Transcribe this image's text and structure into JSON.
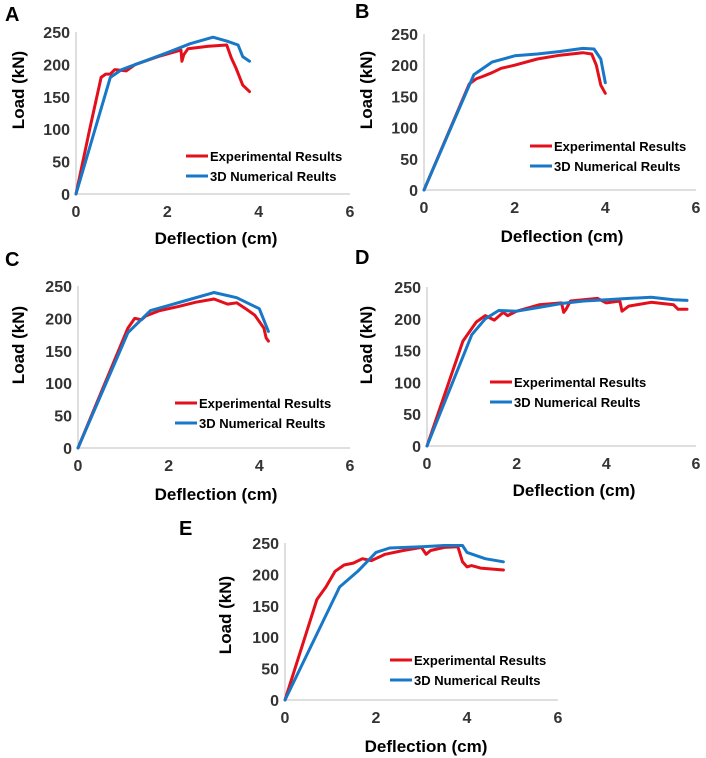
{
  "colors": {
    "experimental": "#e3101c",
    "numerical": "#1878c8",
    "axis": "#bfbfbf"
  },
  "chart_data": [
    {
      "panel": "A",
      "type": "line",
      "xlabel": "Deflection (cm)",
      "ylabel": "Load (kN)",
      "xlim": [
        0,
        6
      ],
      "ylim": [
        0,
        250
      ],
      "xticks": [
        "0",
        "2",
        "4",
        "6"
      ],
      "yticks": [
        "0",
        "50",
        "100",
        "150",
        "200",
        "250"
      ],
      "legend": "right",
      "series": [
        {
          "name": "Experimental Results",
          "color": "#e3101c",
          "x": [
            0,
            0.3,
            0.55,
            0.65,
            0.75,
            0.85,
            1.1,
            1.3,
            1.8,
            2.3,
            2.32,
            2.36,
            2.45,
            2.9,
            3.3,
            3.4,
            3.5,
            3.65,
            3.8
          ],
          "y": [
            0,
            100,
            180,
            185,
            185,
            192,
            190,
            200,
            212,
            222,
            205,
            215,
            224,
            228,
            230,
            210,
            195,
            168,
            158
          ]
        },
        {
          "name": "3D Numerical Reults",
          "color": "#1878c8",
          "x": [
            0,
            0.75,
            1.0,
            1.5,
            2.0,
            2.5,
            3.0,
            3.3,
            3.55,
            3.65,
            3.8
          ],
          "y": [
            0,
            180,
            192,
            205,
            218,
            232,
            242,
            236,
            230,
            212,
            205
          ]
        }
      ]
    },
    {
      "panel": "B",
      "type": "line",
      "xlabel": "Deflection (cm)",
      "ylabel": "Load (kN)",
      "xlim": [
        0,
        6
      ],
      "ylim": [
        0,
        250
      ],
      "xticks": [
        "0",
        "2",
        "4",
        "6"
      ],
      "yticks": [
        "0",
        "50",
        "100",
        "150",
        "200",
        "250"
      ],
      "legend": "right",
      "series": [
        {
          "name": "Experimental Results",
          "color": "#e3101c",
          "x": [
            0,
            1.0,
            1.15,
            1.3,
            1.5,
            1.7,
            2.0,
            2.5,
            3.0,
            3.5,
            3.7,
            3.8,
            3.9,
            4.0
          ],
          "y": [
            0,
            170,
            178,
            182,
            188,
            195,
            200,
            210,
            216,
            220,
            218,
            200,
            168,
            155
          ]
        },
        {
          "name": "3D Numerical Reults",
          "color": "#1878c8",
          "x": [
            0,
            1.1,
            1.5,
            2.0,
            2.5,
            3.0,
            3.5,
            3.75,
            3.9,
            4.0
          ],
          "y": [
            0,
            185,
            205,
            215,
            218,
            222,
            227,
            226,
            210,
            172
          ]
        }
      ]
    },
    {
      "panel": "C",
      "type": "line",
      "xlabel": "Deflection (cm)",
      "ylabel": "Load (kN)",
      "xlim": [
        0,
        6
      ],
      "ylim": [
        0,
        250
      ],
      "xticks": [
        "0",
        "2",
        "4",
        "6"
      ],
      "yticks": [
        "0",
        "50",
        "100",
        "150",
        "200",
        "250"
      ],
      "legend": "right",
      "series": [
        {
          "name": "Experimental Results",
          "color": "#e3101c",
          "x": [
            0,
            1.1,
            1.25,
            1.4,
            1.5,
            1.8,
            2.2,
            2.6,
            3.0,
            3.3,
            3.5,
            3.7,
            3.9,
            4.1,
            4.15,
            4.2
          ],
          "y": [
            0,
            185,
            200,
            198,
            204,
            212,
            218,
            225,
            230,
            222,
            224,
            215,
            205,
            185,
            170,
            165
          ]
        },
        {
          "name": "3D Numerical Reults",
          "color": "#1878c8",
          "x": [
            0,
            1.1,
            1.6,
            2.0,
            2.5,
            2.9,
            3.0,
            3.5,
            4.0,
            4.2
          ],
          "y": [
            0,
            178,
            212,
            220,
            230,
            238,
            240,
            232,
            215,
            180
          ]
        }
      ]
    },
    {
      "panel": "D",
      "type": "line",
      "xlabel": "Deflection (cm)",
      "ylabel": "Load (kN)",
      "xlim": [
        0,
        6
      ],
      "ylim": [
        0,
        250
      ],
      "xticks": [
        "0",
        "2",
        "4",
        "6"
      ],
      "yticks": [
        "0",
        "50",
        "100",
        "150",
        "200",
        "250"
      ],
      "legend": "right",
      "series": [
        {
          "name": "Experimental Results",
          "color": "#e3101c",
          "x": [
            0,
            0.8,
            1.1,
            1.3,
            1.5,
            1.7,
            1.8,
            2.0,
            2.5,
            3.0,
            3.05,
            3.1,
            3.2,
            3.8,
            4.0,
            4.3,
            4.35,
            4.5,
            5.0,
            5.5,
            5.6,
            5.8
          ],
          "y": [
            0,
            165,
            195,
            205,
            198,
            210,
            205,
            212,
            222,
            225,
            210,
            215,
            228,
            232,
            225,
            228,
            212,
            220,
            226,
            222,
            215,
            215
          ]
        },
        {
          "name": "3D Numerical Reults",
          "color": "#1878c8",
          "x": [
            0,
            1.0,
            1.3,
            1.6,
            2.0,
            2.5,
            3.0,
            3.5,
            4.0,
            4.5,
            5.0,
            5.5,
            5.8
          ],
          "y": [
            0,
            175,
            200,
            213,
            212,
            218,
            224,
            228,
            230,
            232,
            234,
            230,
            229
          ]
        }
      ]
    },
    {
      "panel": "E",
      "type": "line",
      "xlabel": "Deflection (cm)",
      "ylabel": "Load (kN)",
      "xlim": [
        0,
        6
      ],
      "ylim": [
        0,
        250
      ],
      "xticks": [
        "0",
        "2",
        "4",
        "6"
      ],
      "yticks": [
        "0",
        "50",
        "100",
        "150",
        "200",
        "250"
      ],
      "legend": "right",
      "series": [
        {
          "name": "Experimental Results",
          "color": "#e3101c",
          "x": [
            0,
            0.7,
            0.9,
            1.1,
            1.3,
            1.5,
            1.7,
            1.9,
            2.2,
            2.6,
            3.0,
            3.1,
            3.2,
            3.5,
            3.8,
            3.9,
            4.0,
            4.1,
            4.3,
            4.8
          ],
          "y": [
            0,
            160,
            180,
            205,
            215,
            218,
            225,
            222,
            232,
            238,
            243,
            232,
            238,
            243,
            244,
            220,
            212,
            214,
            210,
            207
          ]
        },
        {
          "name": "3D Numerical Reults",
          "color": "#1878c8",
          "x": [
            0,
            1.2,
            1.6,
            2.0,
            2.3,
            3.0,
            3.5,
            3.9,
            4.0,
            4.4,
            4.8
          ],
          "y": [
            0,
            180,
            205,
            235,
            242,
            244,
            246,
            246,
            235,
            225,
            220
          ]
        }
      ]
    }
  ]
}
